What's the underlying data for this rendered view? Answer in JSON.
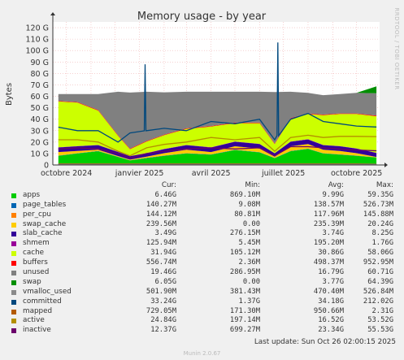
{
  "chart_data": {
    "type": "area",
    "title": "Memory usage - by year",
    "ylabel": "Bytes",
    "side_label": "RRDTOOL / TOBI OETIKER",
    "ylim": [
      0,
      125
    ],
    "yticks": [
      0,
      10,
      20,
      30,
      40,
      50,
      60,
      70,
      80,
      90,
      100,
      110,
      120
    ],
    "ytick_labels": [
      "0",
      "10 G",
      "20 G",
      "30 G",
      "40 G",
      "50 G",
      "60 G",
      "70 G",
      "80 G",
      "90 G",
      "100 G",
      "110 G",
      "120 G"
    ],
    "xlim": [
      "2024-09-14",
      "2025-10-30"
    ],
    "xticks": [
      {
        "date": "2024-10-01",
        "label": "octobre 2024"
      },
      {
        "date": "2025-01-01",
        "label": "janvier 2025"
      },
      {
        "date": "2025-04-01",
        "label": "avril 2025"
      },
      {
        "date": "2025-07-01",
        "label": "juillet 2025"
      },
      {
        "date": "2025-10-01",
        "label": "octobre 2025"
      }
    ],
    "grid": true,
    "x_dates": [
      "2024-09-21",
      "2024-10-15",
      "2024-11-10",
      "2024-12-05",
      "2024-12-20",
      "2025-01-10",
      "2025-02-01",
      "2025-03-01",
      "2025-04-01",
      "2025-05-01",
      "2025-06-01",
      "2025-06-20",
      "2025-07-10",
      "2025-08-01",
      "2025-08-20",
      "2025-09-10",
      "2025-10-01",
      "2025-10-26"
    ],
    "stack": [
      {
        "name": "apps",
        "color": "#00cc00",
        "values": [
          8,
          10,
          12,
          7,
          4,
          6,
          8,
          10,
          9,
          13,
          11,
          6,
          12,
          14,
          10,
          9,
          8,
          6.5
        ]
      },
      {
        "name": "page_tables",
        "color": "#0066b3",
        "values": [
          0.2,
          0.2,
          0.2,
          0.2,
          0.1,
          0.2,
          0.2,
          0.2,
          0.2,
          0.2,
          0.2,
          0.1,
          0.2,
          0.2,
          0.2,
          0.2,
          0.2,
          0.14
        ]
      },
      {
        "name": "per_cpu",
        "color": "#ff8000",
        "values": [
          0.1,
          0.1,
          0.1,
          0.1,
          0.1,
          0.1,
          0.1,
          0.1,
          0.1,
          0.1,
          0.1,
          0.1,
          0.1,
          0.1,
          0.1,
          0.1,
          0.1,
          0.14
        ]
      },
      {
        "name": "swap_cache",
        "color": "#ffcc00",
        "values": [
          3,
          2,
          1,
          0.5,
          0.5,
          1,
          2,
          3,
          2,
          3,
          3,
          1,
          4,
          4,
          3,
          3,
          2,
          0.24
        ]
      },
      {
        "name": "slab_cache",
        "color": "#330099",
        "values": [
          4,
          4,
          4,
          3.5,
          3,
          3,
          3.5,
          4,
          4,
          4,
          4,
          3,
          4,
          4,
          4,
          4,
          4,
          3.5
        ]
      },
      {
        "name": "shmem",
        "color": "#990099",
        "values": [
          0.2,
          0.2,
          0.2,
          0.2,
          0.1,
          0.2,
          0.2,
          0.2,
          0.2,
          0.2,
          0.2,
          0.1,
          0.2,
          0.2,
          0.2,
          0.2,
          0.2,
          0.13
        ]
      },
      {
        "name": "cache",
        "color": "#ccff00",
        "values": [
          40,
          38,
          30,
          14,
          6,
          10,
          12,
          14,
          18,
          16,
          18,
          8,
          20,
          22,
          26,
          28,
          30,
          31.9
        ]
      },
      {
        "name": "buffers",
        "color": "#ff0000",
        "values": [
          0.5,
          0.5,
          0.5,
          0.5,
          0.5,
          0.5,
          0.5,
          0.5,
          0.5,
          0.5,
          0.5,
          0.5,
          0.5,
          0.5,
          0.5,
          0.5,
          0.5,
          0.56
        ]
      },
      {
        "name": "unused",
        "color": "#808080",
        "values": [
          6,
          7,
          14,
          38,
          49,
          43,
          37,
          32,
          30,
          27,
          27,
          45,
          23,
          18,
          17,
          17,
          18,
          19.5
        ]
      },
      {
        "name": "swap",
        "color": "#008f00",
        "values": [
          0,
          0,
          0,
          0,
          0,
          0,
          0,
          0,
          0,
          0,
          0,
          0,
          0,
          0,
          0,
          0,
          0,
          6.1
        ]
      }
    ],
    "lines": [
      {
        "name": "committed",
        "color": "#00487d",
        "values": [
          33,
          30,
          30,
          20,
          28,
          30,
          32,
          30,
          38,
          36,
          40,
          22,
          40,
          45,
          38,
          36,
          34,
          33.2
        ]
      },
      {
        "name": "mapped",
        "color": "#b35a00",
        "values": [
          1,
          1,
          1,
          1,
          1,
          1,
          1,
          1,
          1,
          1,
          1,
          1,
          1,
          1,
          1,
          1,
          1,
          0.73
        ]
      },
      {
        "name": "active",
        "color": "#b38f00",
        "values": [
          22,
          22,
          20,
          12,
          8,
          15,
          18,
          20,
          24,
          22,
          24,
          12,
          24,
          26,
          24,
          25,
          25,
          24.8
        ]
      },
      {
        "name": "inactive",
        "color": "#6b006b",
        "values": [
          14,
          15,
          14,
          10,
          6,
          10,
          12,
          14,
          15,
          14,
          15,
          8,
          16,
          16,
          15,
          14,
          13,
          12.4
        ]
      },
      {
        "name": "vmalloc_used",
        "color": "#8a8a8a",
        "values": [
          0.5,
          0.5,
          0.5,
          0.5,
          0.5,
          0.5,
          0.5,
          0.5,
          0.5,
          0.5,
          0.5,
          0.5,
          0.5,
          0.5,
          0.5,
          0.5,
          0.5,
          0.5
        ]
      }
    ],
    "spikes": [
      {
        "series": "committed",
        "date": "2025-01-08",
        "value": 88
      },
      {
        "series": "committed",
        "date": "2025-06-24",
        "value": 107
      }
    ]
  },
  "legend": {
    "headers": {
      "cur": "Cur:",
      "min": "Min:",
      "avg": "Avg:",
      "max": "Max:"
    },
    "rows": [
      {
        "name": "apps",
        "color": "#00cc00",
        "cur": "6.46G",
        "min": "869.10M",
        "avg": "9.99G",
        "max": "59.35G"
      },
      {
        "name": "page_tables",
        "color": "#0066b3",
        "cur": "140.27M",
        "min": "9.08M",
        "avg": "138.57M",
        "max": "526.73M"
      },
      {
        "name": "per_cpu",
        "color": "#ff8000",
        "cur": "144.12M",
        "min": "80.81M",
        "avg": "117.96M",
        "max": "145.88M"
      },
      {
        "name": "swap_cache",
        "color": "#ffcc00",
        "cur": "239.56M",
        "min": "0.00",
        "avg": "235.39M",
        "max": "20.24G"
      },
      {
        "name": "slab_cache",
        "color": "#330099",
        "cur": "3.49G",
        "min": "276.15M",
        "avg": "3.74G",
        "max": "8.25G"
      },
      {
        "name": "shmem",
        "color": "#990099",
        "cur": "125.94M",
        "min": "5.45M",
        "avg": "195.20M",
        "max": "1.76G"
      },
      {
        "name": "cache",
        "color": "#ccff00",
        "cur": "31.94G",
        "min": "105.12M",
        "avg": "30.86G",
        "max": "58.06G"
      },
      {
        "name": "buffers",
        "color": "#ff0000",
        "cur": "556.74M",
        "min": "2.36M",
        "avg": "498.37M",
        "max": "952.95M"
      },
      {
        "name": "unused",
        "color": "#808080",
        "cur": "19.46G",
        "min": "286.95M",
        "avg": "16.79G",
        "max": "60.71G"
      },
      {
        "name": "swap",
        "color": "#008f00",
        "cur": "6.05G",
        "min": "0.00",
        "avg": "3.77G",
        "max": "64.39G"
      },
      {
        "name": "vmalloc_used",
        "color": "#8a8a8a",
        "cur": "501.90M",
        "min": "381.43M",
        "avg": "470.40M",
        "max": "526.84M"
      },
      {
        "name": "committed",
        "color": "#00487d",
        "cur": "33.24G",
        "min": "1.37G",
        "avg": "34.18G",
        "max": "212.02G"
      },
      {
        "name": "mapped",
        "color": "#b35a00",
        "cur": "729.05M",
        "min": "171.30M",
        "avg": "950.66M",
        "max": "2.31G"
      },
      {
        "name": "active",
        "color": "#b38f00",
        "cur": "24.84G",
        "min": "197.14M",
        "avg": "16.52G",
        "max": "53.52G"
      },
      {
        "name": "inactive",
        "color": "#6b006b",
        "cur": "12.37G",
        "min": "699.27M",
        "avg": "23.34G",
        "max": "55.53G"
      }
    ]
  },
  "last_update": "Last update: Sun Oct 26 02:00:15 2025",
  "footer": "Munin 2.0.67"
}
